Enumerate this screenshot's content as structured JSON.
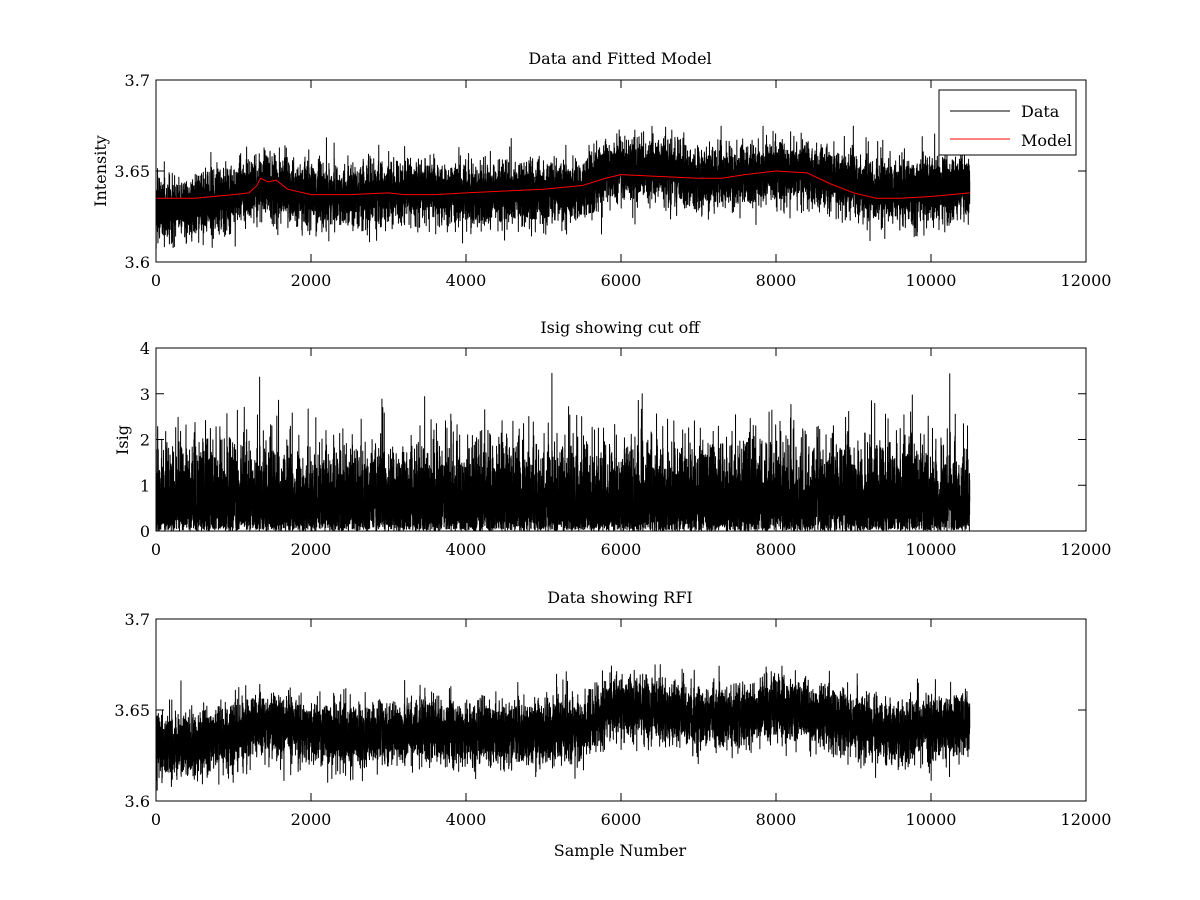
{
  "chart_data": [
    {
      "type": "line",
      "title": "Data and Fitted Model",
      "xlabel": "",
      "ylabel": "Intensity",
      "xlim": [
        0,
        12000
      ],
      "ylim": [
        3.6,
        3.7
      ],
      "xticks": [
        0,
        2000,
        4000,
        6000,
        8000,
        10000,
        12000
      ],
      "xtick_labels": [
        "0",
        "2000",
        "4000",
        "6000",
        "8000",
        "10000",
        "12000"
      ],
      "yticks": [
        3.6,
        3.65,
        3.7
      ],
      "ytick_labels": [
        "3.6",
        "3.65",
        "3.7"
      ],
      "legend": {
        "position": "top-right",
        "entries": [
          "Data",
          "Model"
        ]
      },
      "series": [
        {
          "name": "Data",
          "color": "#000000",
          "kind": "noisy",
          "x_range": [
            0,
            10500
          ],
          "n_points": 10500,
          "noise_sd": 0.0085,
          "spike_max": 3.675,
          "spike_min": 3.605,
          "baseline": {
            "x": [
              0,
              500,
              1000,
              1200,
              1400,
              1600,
              2000,
              2500,
              3000,
              3500,
              4000,
              4500,
              5000,
              5500,
              5800,
              6000,
              6500,
              7000,
              7500,
              8000,
              8500,
              9000,
              9500,
              10000,
              10500
            ],
            "y": [
              3.629,
              3.631,
              3.636,
              3.64,
              3.642,
              3.64,
              3.637,
              3.636,
              3.638,
              3.64,
              3.636,
              3.638,
              3.638,
              3.64,
              3.65,
              3.652,
              3.65,
              3.646,
              3.647,
              3.651,
              3.647,
              3.642,
              3.638,
              3.64,
              3.642
            ]
          }
        },
        {
          "name": "Model",
          "color": "#ff0000",
          "kind": "smooth",
          "x": [
            0,
            500,
            1000,
            1200,
            1300,
            1350,
            1450,
            1550,
            1700,
            2000,
            2500,
            3000,
            3200,
            3600,
            4000,
            4500,
            5000,
            5500,
            5800,
            6000,
            6500,
            7000,
            7300,
            7600,
            8000,
            8400,
            8700,
            9000,
            9300,
            9600,
            10000,
            10500
          ],
          "y": [
            3.635,
            3.635,
            3.637,
            3.638,
            3.642,
            3.646,
            3.644,
            3.645,
            3.64,
            3.637,
            3.637,
            3.638,
            3.637,
            3.637,
            3.638,
            3.639,
            3.64,
            3.642,
            3.646,
            3.648,
            3.647,
            3.646,
            3.646,
            3.648,
            3.65,
            3.649,
            3.643,
            3.638,
            3.635,
            3.635,
            3.636,
            3.638
          ]
        }
      ]
    },
    {
      "type": "line",
      "title": "Isig showing cut off",
      "xlabel": "",
      "ylabel": "Isig",
      "xlim": [
        0,
        12000
      ],
      "ylim": [
        0,
        4
      ],
      "xticks": [
        0,
        2000,
        4000,
        6000,
        8000,
        10000,
        12000
      ],
      "xtick_labels": [
        "0",
        "2000",
        "4000",
        "6000",
        "8000",
        "10000",
        "12000"
      ],
      "yticks": [
        0,
        1,
        2,
        3,
        4
      ],
      "ytick_labels": [
        "0",
        "1",
        "2",
        "3",
        "4"
      ],
      "series": [
        {
          "name": "Isig",
          "color": "#000000",
          "kind": "abs_noise",
          "x_range": [
            0,
            10500
          ],
          "n_points": 10500,
          "scale": 0.85,
          "max_value": 3.55
        }
      ]
    },
    {
      "type": "line",
      "title": "Data showing RFI",
      "xlabel": "Sample Number",
      "ylabel": "",
      "xlim": [
        0,
        12000
      ],
      "ylim": [
        3.6,
        3.7
      ],
      "xticks": [
        0,
        2000,
        4000,
        6000,
        8000,
        10000,
        12000
      ],
      "xtick_labels": [
        "0",
        "2000",
        "4000",
        "6000",
        "8000",
        "10000",
        "12000"
      ],
      "yticks": [
        3.6,
        3.65,
        3.7
      ],
      "ytick_labels": [
        "3.6",
        "3.65",
        "3.7"
      ],
      "series": [
        {
          "name": "Data",
          "color": "#000000",
          "kind": "noisy",
          "x_range": [
            0,
            10500
          ],
          "n_points": 10500,
          "noise_sd": 0.0085,
          "spike_max": 3.675,
          "spike_min": 3.605,
          "baseline": {
            "x": [
              0,
              500,
              1000,
              1200,
              1400,
              1600,
              2000,
              2500,
              3000,
              3500,
              4000,
              4500,
              5000,
              5500,
              5800,
              6000,
              6500,
              7000,
              7500,
              8000,
              8500,
              9000,
              9500,
              10000,
              10500
            ],
            "y": [
              3.629,
              3.631,
              3.636,
              3.64,
              3.642,
              3.64,
              3.637,
              3.636,
              3.638,
              3.64,
              3.636,
              3.638,
              3.638,
              3.64,
              3.65,
              3.652,
              3.65,
              3.646,
              3.647,
              3.651,
              3.647,
              3.642,
              3.638,
              3.64,
              3.642
            ]
          }
        }
      ]
    }
  ]
}
